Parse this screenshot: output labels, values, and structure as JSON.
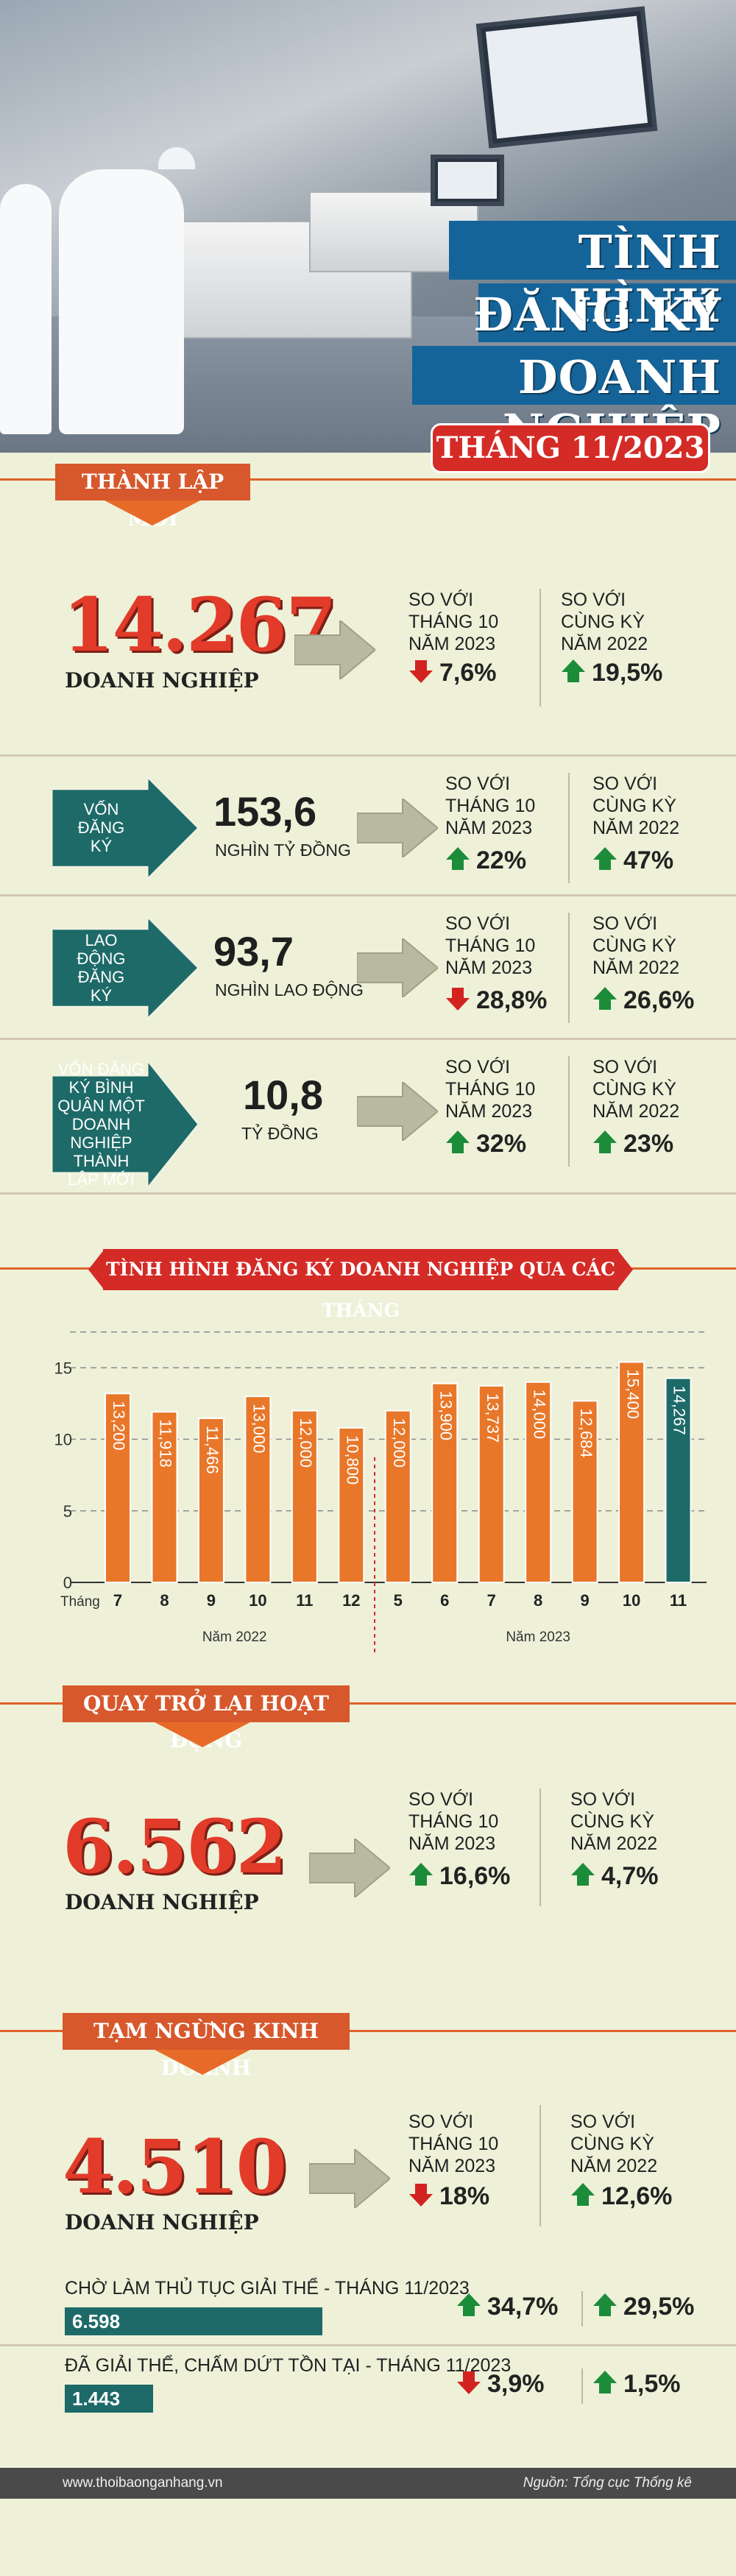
{
  "header": {
    "title_lines": [
      "TÌNH HÌNH",
      "ĐĂNG KÝ",
      "DOANH NGHIỆP"
    ],
    "month": "THÁNG 11/2023"
  },
  "established": {
    "tag": "THÀNH LẬP MỚI",
    "number": "14.267",
    "label": "DOANH NGHIỆP",
    "cmp1_label": "SO VỚI\nTHÁNG 10\nNĂM 2023",
    "cmp1_value": "7,6%",
    "cmp1_dir": "down",
    "cmp2_label": "SO VỚI\nCÙNG KỲ\nNĂM 2022",
    "cmp2_value": "19,5%",
    "cmp2_dir": "up"
  },
  "stats": [
    {
      "arrow_text": "VỐN\nĐĂNG\nKÝ",
      "value": "153,6",
      "unit": "NGHÌN TỶ ĐỒNG",
      "cmp1_label": "SO VỚI\nTHÁNG 10\nNĂM 2023",
      "cmp1_value": "22%",
      "cmp1_dir": "up",
      "cmp2_label": "SO VỚI\nCÙNG KỲ\nNĂM 2022",
      "cmp2_value": "47%",
      "cmp2_dir": "up"
    },
    {
      "arrow_text": "LAO\nĐỘNG\nĐĂNG\nKÝ",
      "value": "93,7",
      "unit": "NGHÌN LAO ĐỘNG",
      "cmp1_label": "SO VỚI\nTHÁNG 10\nNĂM 2023",
      "cmp1_value": "28,8%",
      "cmp1_dir": "down",
      "cmp2_label": "SO VỚI\nCÙNG KỲ\nNĂM 2022",
      "cmp2_value": "26,6%",
      "cmp2_dir": "up"
    },
    {
      "arrow_text": "VỐN ĐĂNG\nKÝ BÌNH\nQUÂN MỘT\nDOANH\nNGHIỆP\nTHÀNH\nLẬP MỚI",
      "value": "10,8",
      "unit": "TỶ ĐỒNG",
      "cmp1_label": "SO VỚI\nTHÁNG 10\nNĂM 2023",
      "cmp1_value": "32%",
      "cmp1_dir": "up",
      "cmp2_label": "SO VỚI\nCÙNG KỲ\nNĂM 2022",
      "cmp2_value": "23%",
      "cmp2_dir": "up"
    }
  ],
  "chart_data": {
    "type": "bar",
    "title": "TÌNH HÌNH ĐĂNG KÝ DOANH NGHIỆP QUA CÁC THÁNG",
    "xlabel": "Tháng",
    "categories": [
      "7",
      "8",
      "9",
      "10",
      "11",
      "12",
      "5",
      "6",
      "7",
      "8",
      "9",
      "10",
      "11"
    ],
    "values": [
      13200,
      11918,
      11466,
      13000,
      12000,
      10800,
      12000,
      13900,
      13737,
      14000,
      12684,
      15400,
      14267
    ],
    "value_labels": [
      "13,200",
      "11,918",
      "11,466",
      "13,000",
      "12,000",
      "10,800",
      "12,000",
      "13,900",
      "13,737",
      "14,000",
      "12,684",
      "15,400",
      "14,267"
    ],
    "yticks": [
      "0",
      "5",
      "10",
      "15"
    ],
    "ylim": [
      0,
      18000
    ],
    "year_labels": [
      "Năm 2022",
      "Năm 2023"
    ],
    "bar_color": "#e8772a",
    "highlight_color": "#1d6a68"
  },
  "returned": {
    "tag": "QUAY TRỞ LẠI HOẠT ĐỘNG",
    "number": "6.562",
    "label": "DOANH NGHIỆP",
    "cmp1_label": "SO VỚI\nTHÁNG 10\nNĂM 2023",
    "cmp1_value": "16,6%",
    "cmp1_dir": "up",
    "cmp2_label": "SO VỚI\nCÙNG KỲ\nNĂM 2022",
    "cmp2_value": "4,7%",
    "cmp2_dir": "up"
  },
  "suspended": {
    "tag": "TẠM NGỪNG KINH DOANH",
    "number": "4.510",
    "label": "DOANH NGHIỆP",
    "cmp1_label": "SO VỚI\nTHÁNG 10\nNĂM 2023",
    "cmp1_value": "18%",
    "cmp1_dir": "down",
    "cmp2_label": "SO VỚI\nCÙNG KỲ\nNĂM 2022",
    "cmp2_value": "12,6%",
    "cmp2_dir": "up"
  },
  "dissolution": [
    {
      "label": "CHỜ LÀM THỦ TỤC GIẢI THỂ - THÁNG 11/2023",
      "value": "6.598",
      "fill": 0.35,
      "cmp1_value": "34,7%",
      "cmp1_dir": "up",
      "cmp2_value": "29,5%",
      "cmp2_dir": "up"
    },
    {
      "label": "ĐÃ GIẢI THỂ, CHẤM DỨT TỒN TẠI - THÁNG 11/2023",
      "value": "1.443",
      "fill": 0.12,
      "cmp1_value": "3,9%",
      "cmp1_dir": "down",
      "cmp2_value": "1,5%",
      "cmp2_dir": "up"
    }
  ],
  "footer": {
    "left": "www.thoibaonganhang.vn",
    "right": "Nguồn: Tổng cục Thống kê"
  }
}
